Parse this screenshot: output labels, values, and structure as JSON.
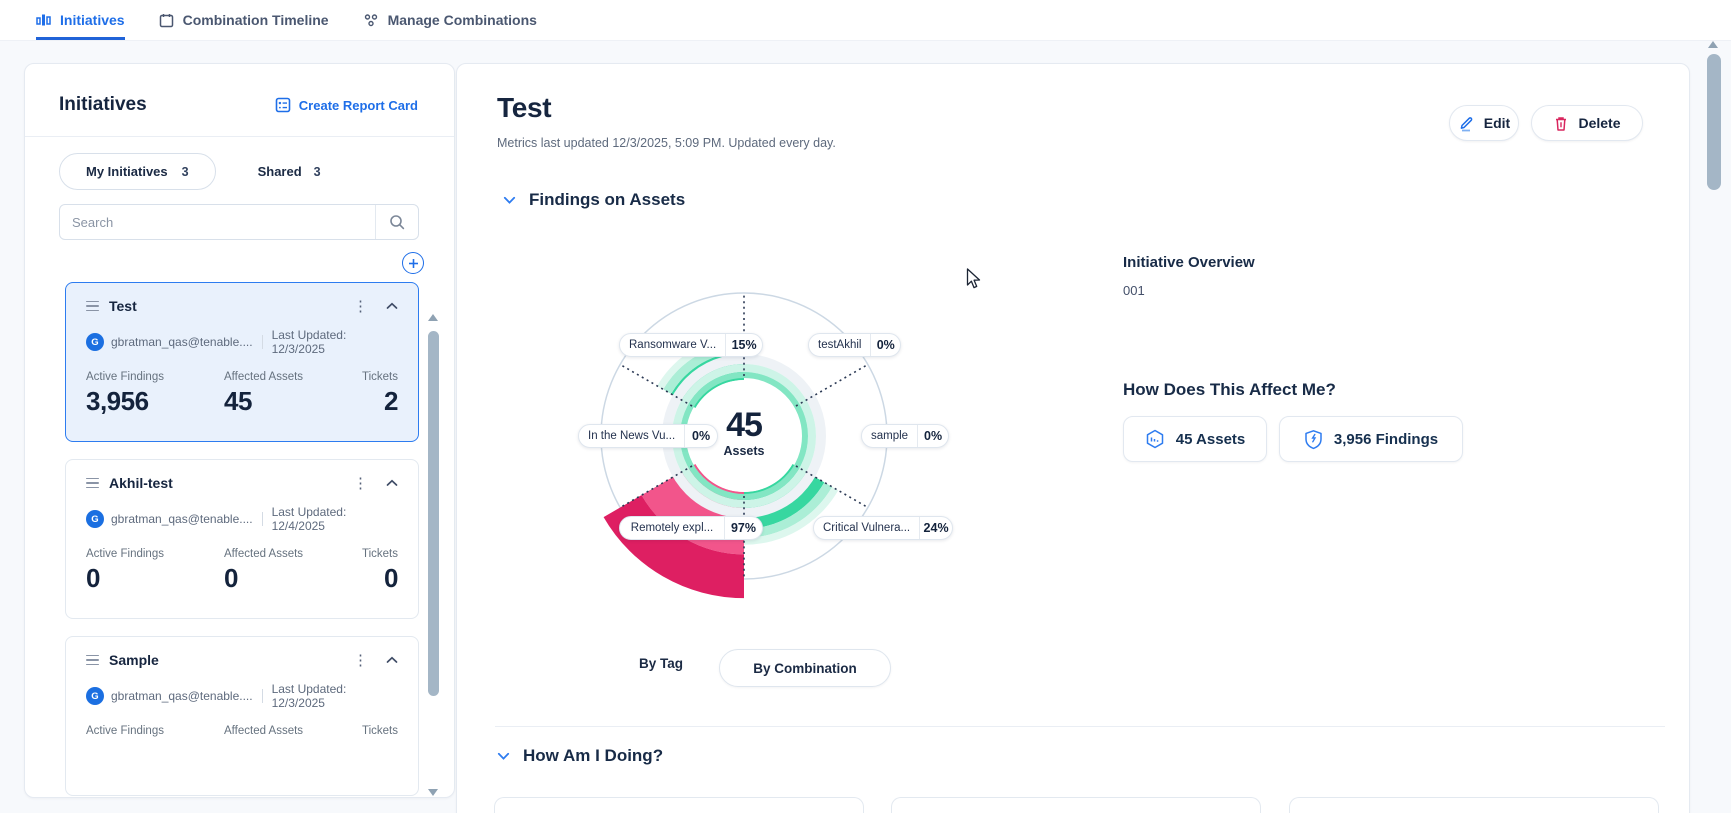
{
  "nav": {
    "tabs": [
      {
        "label": "Initiatives",
        "icon": "bar-chart-icon",
        "active": true
      },
      {
        "label": "Combination Timeline",
        "icon": "calendar-icon",
        "active": false
      },
      {
        "label": "Manage Combinations",
        "icon": "combinations-icon",
        "active": false
      }
    ]
  },
  "sidebar": {
    "title": "Initiatives",
    "create_report_card": "Create Report Card",
    "tabs": {
      "my_label": "My Initiatives",
      "my_count": "3",
      "shared_label": "Shared",
      "shared_count": "3"
    },
    "search_placeholder": "Search",
    "stat_labels": {
      "active_findings": "Active Findings",
      "affected_assets": "Affected Assets",
      "tickets": "Tickets"
    },
    "cards": [
      {
        "name": "Test",
        "avatar_letter": "G",
        "owner": "gbratman_qas@tenable....",
        "last_updated": "Last Updated: 12/3/2025",
        "active_findings": "3,956",
        "affected_assets": "45",
        "tickets": "2",
        "selected": true
      },
      {
        "name": "Akhil-test",
        "avatar_letter": "G",
        "owner": "gbratman_qas@tenable....",
        "last_updated": "Last Updated: 12/4/2025",
        "active_findings": "0",
        "affected_assets": "0",
        "tickets": "0",
        "selected": false
      },
      {
        "name": "Sample",
        "avatar_letter": "G",
        "owner": "gbratman_qas@tenable....",
        "last_updated": "Last Updated: 12/3/2025",
        "selected": false
      }
    ]
  },
  "main": {
    "title": "Test",
    "subtitle": "Metrics last updated 12/3/2025, 5:09 PM. Updated every day.",
    "edit_label": "Edit",
    "delete_label": "Delete",
    "section_findings": "Findings on Assets",
    "section_doing": "How Am I Doing?",
    "toggle": {
      "by_tag": "By Tag",
      "by_combination": "By Combination"
    },
    "overview": {
      "title": "Initiative Overview",
      "value": "001"
    },
    "affect": {
      "title": "How Does This Affect Me?",
      "assets_button": "45 Assets",
      "findings_button": "3,956 Findings"
    }
  },
  "chart_data": {
    "type": "radial-donut",
    "center": {
      "value": "45",
      "label": "Assets"
    },
    "legend_position": "around-chart",
    "segments": [
      {
        "label": "Ransomware V...",
        "pct": 15,
        "pct_label": "15%",
        "color": "#37d7a0",
        "position": "top-left"
      },
      {
        "label": "testAkhil",
        "pct": 0,
        "pct_label": "0%",
        "color": null,
        "position": "top-right"
      },
      {
        "label": "In the News Vu...",
        "pct": 0,
        "pct_label": "0%",
        "color": null,
        "position": "left"
      },
      {
        "label": "sample",
        "pct": 0,
        "pct_label": "0%",
        "color": null,
        "position": "right"
      },
      {
        "label": "Remotely expl...",
        "pct": 97,
        "pct_label": "97%",
        "color": "#f2558b",
        "position": "bottom-left"
      },
      {
        "label": "Critical Vulnera...",
        "pct": 24,
        "pct_label": "24%",
        "color": "#37d7a0",
        "position": "bottom-right"
      }
    ]
  },
  "colors": {
    "accent_blue": "#1e6ee8",
    "navy": "#16253f",
    "green": "#37d7a0",
    "pink": "#f2558b",
    "pink_dark": "#de1f62",
    "delete_red": "#d9265e",
    "ring": "#ccd8e4",
    "selected_card_bg": "#e9f1fc",
    "selected_card_border": "#2d7cf0"
  }
}
